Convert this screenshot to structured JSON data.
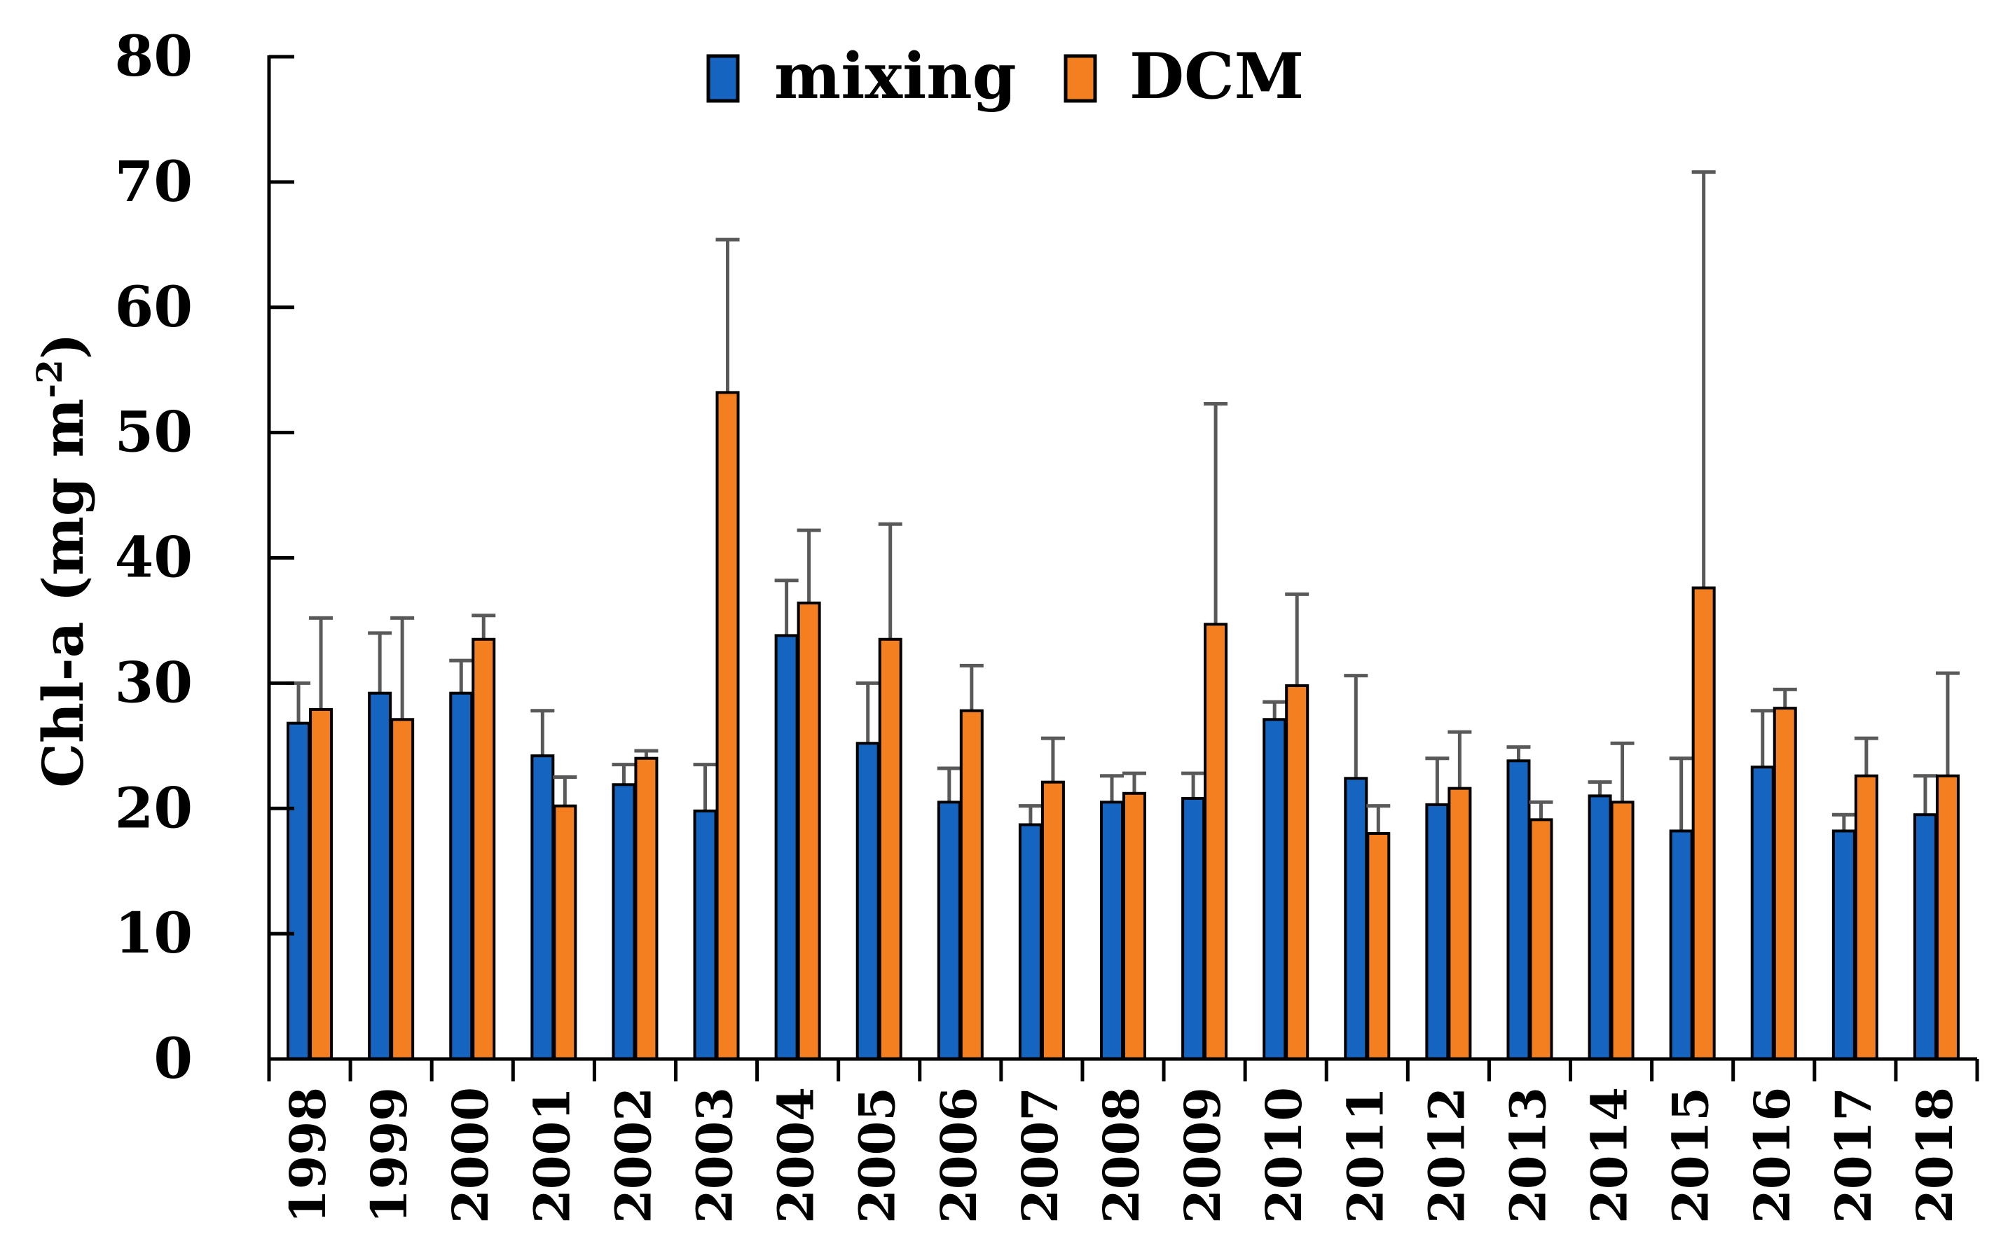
{
  "chart_data": {
    "type": "bar",
    "title": "",
    "xlabel": "",
    "ylabel": "Chl-a (mg m",
    "ylabel_superscript": "-2",
    "ylabel_close": ")",
    "ylim": [
      0,
      80
    ],
    "yticks": [
      "0",
      "10",
      "20",
      "30",
      "40",
      "50",
      "60",
      "70",
      "80"
    ],
    "categories": [
      "1998",
      "1999",
      "2000",
      "2001",
      "2002",
      "2003",
      "2004",
      "2005",
      "2006",
      "2007",
      "2008",
      "2009",
      "2010",
      "2011",
      "2012",
      "2013",
      "2014",
      "2015",
      "2016",
      "2017",
      "2018"
    ],
    "series": [
      {
        "name": "mixing",
        "color": "#1565C0",
        "values": [
          26.8,
          29.2,
          29.2,
          24.2,
          21.9,
          19.8,
          33.8,
          25.2,
          20.5,
          18.7,
          20.5,
          20.8,
          27.1,
          22.4,
          20.3,
          23.8,
          21.0,
          18.2,
          23.3,
          18.2,
          19.5
        ],
        "error_upper": [
          30.0,
          34.0,
          31.8,
          27.8,
          23.5,
          23.5,
          38.2,
          30.0,
          23.2,
          20.2,
          22.6,
          22.8,
          28.5,
          30.6,
          24.0,
          24.9,
          22.1,
          24.0,
          27.8,
          19.5,
          22.6
        ]
      },
      {
        "name": "DCM",
        "color": "#F47F20",
        "values": [
          27.9,
          27.1,
          33.5,
          20.2,
          24.0,
          53.2,
          36.4,
          33.5,
          27.8,
          22.1,
          21.2,
          34.7,
          29.8,
          18.0,
          21.6,
          19.1,
          20.5,
          37.6,
          28.0,
          22.6,
          22.6
        ],
        "error_upper": [
          35.2,
          35.2,
          35.4,
          22.5,
          24.6,
          65.4,
          42.2,
          42.7,
          31.4,
          25.6,
          22.8,
          52.3,
          37.1,
          20.2,
          26.1,
          20.5,
          25.2,
          70.8,
          29.5,
          25.6,
          30.8
        ]
      }
    ],
    "legend": {
      "position": "top-center",
      "entries": [
        "mixing",
        "DCM"
      ]
    },
    "grid": false
  }
}
